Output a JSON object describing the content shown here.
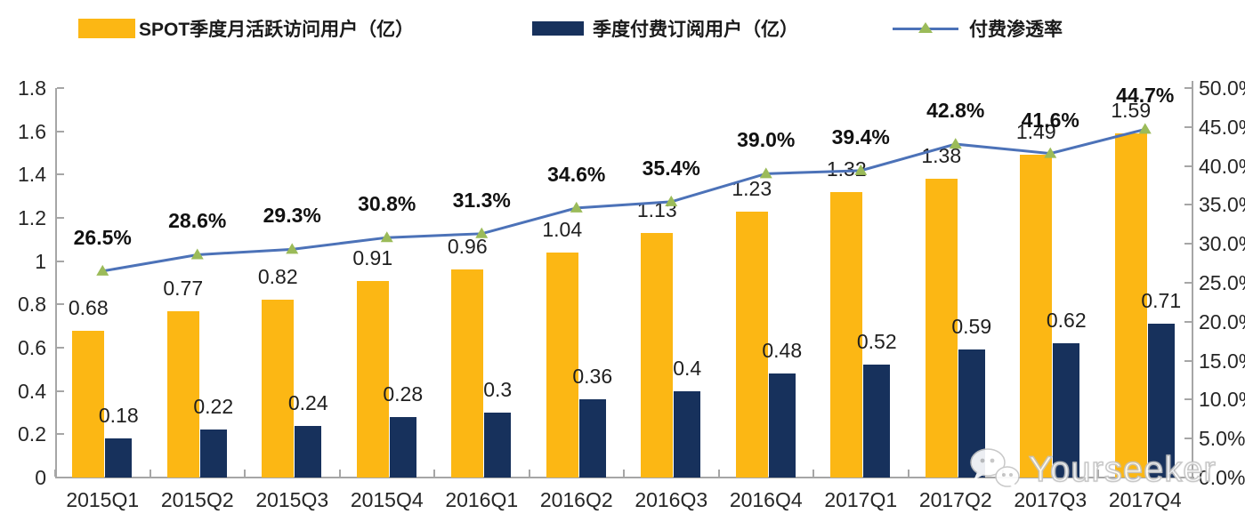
{
  "legend": {
    "items": [
      {
        "label": "SPOT季度月活跃访问用户（亿）",
        "type": "bar",
        "color": "#FCB714"
      },
      {
        "label": "季度付费订阅用户（亿）",
        "type": "bar",
        "color": "#17315C"
      },
      {
        "label": "付费渗透率",
        "type": "line",
        "color": "#4C72B8",
        "marker_color": "#9BBB59"
      }
    ]
  },
  "watermark": {
    "text": "Yourseeker",
    "icon": "wechat-icon"
  },
  "colors": {
    "mau_bar": "#FCB714",
    "sub_bar": "#17315C",
    "line": "#4C72B8",
    "marker": "#9BBB59",
    "axis": "#a6a6a6",
    "text": "#262626"
  },
  "chart_data": {
    "type": "bar",
    "subtype": "grouped-bars-with-line",
    "categories": [
      "2015Q1",
      "2015Q2",
      "2015Q3",
      "2015Q4",
      "2016Q1",
      "2016Q2",
      "2016Q3",
      "2016Q4",
      "2017Q1",
      "2017Q2",
      "2017Q3",
      "2017Q4"
    ],
    "series": [
      {
        "name": "SPOT季度月活跃访问用户（亿）",
        "type": "bar",
        "axis": "left",
        "color": "#FCB714",
        "values": [
          0.68,
          0.77,
          0.82,
          0.91,
          0.96,
          1.04,
          1.13,
          1.23,
          1.32,
          1.38,
          1.49,
          1.59
        ],
        "labels": [
          "0.68",
          "0.77",
          "0.82",
          "0.91",
          "0.96",
          "1.04",
          "1.13",
          "1.23",
          "1.32",
          "1.38",
          "1.49",
          "1.59"
        ]
      },
      {
        "name": "季度付费订阅用户（亿）",
        "type": "bar",
        "axis": "left",
        "color": "#17315C",
        "values": [
          0.18,
          0.22,
          0.24,
          0.28,
          0.3,
          0.36,
          0.4,
          0.48,
          0.52,
          0.59,
          0.62,
          0.71
        ],
        "labels": [
          "0.18",
          "0.22",
          "0.24",
          "0.28",
          "0.3",
          "0.36",
          "0.4",
          "0.48",
          "0.52",
          "0.59",
          "0.62",
          "0.71"
        ]
      },
      {
        "name": "付费渗透率",
        "type": "line",
        "axis": "right",
        "color": "#4C72B8",
        "marker": "triangle",
        "marker_color": "#9BBB59",
        "values": [
          26.5,
          28.6,
          29.3,
          30.8,
          31.3,
          34.6,
          35.4,
          39.0,
          39.4,
          42.8,
          41.6,
          44.7
        ],
        "labels": [
          "26.5%",
          "28.6%",
          "29.3%",
          "30.8%",
          "31.3%",
          "34.6%",
          "35.4%",
          "39.0%",
          "39.4%",
          "42.8%",
          "41.6%",
          "44.7%"
        ]
      }
    ],
    "left_axis": {
      "min": 0,
      "max": 1.8,
      "step": 0.2,
      "ticks": [
        "0",
        "0.2",
        "0.4",
        "0.6",
        "0.8",
        "1",
        "1.2",
        "1.4",
        "1.6",
        "1.8"
      ]
    },
    "right_axis": {
      "min": 0,
      "max": 50,
      "step": 5,
      "ticks": [
        "0.0%",
        "5.0%",
        "10.0%",
        "15.0%",
        "20.0%",
        "25.0%",
        "30.0%",
        "35.0%",
        "40.0%",
        "45.0%",
        "50.0%"
      ]
    },
    "grid": false,
    "legend_position": "top"
  }
}
